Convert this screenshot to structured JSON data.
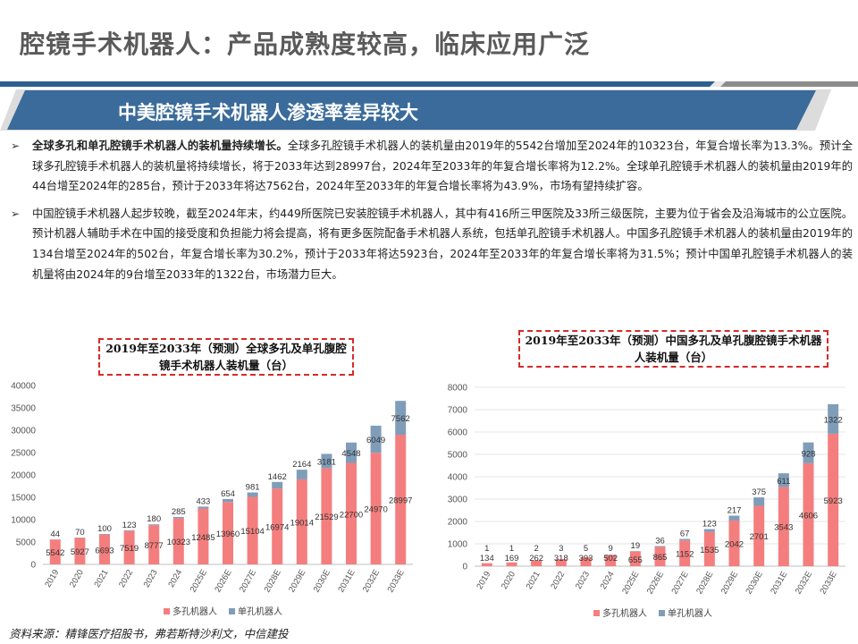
{
  "page": {
    "title": "腔镜手术机器人：产品成熟度较高，临床应用广泛",
    "section_banner": "中美腔镜手术机器人渗透率差异较大",
    "bullet1_bold": "全球多孔和单孔腔镜手术机器人的装机量持续增长。",
    "bullet1_text": "全球多孔腔镜手术机器人的装机量由2019年的5542台增加至2024年的10323台，年复合增长率为13.3%。预计全球多孔腔镜手术机器人的装机量将持续增长，将于2033年达到28997台，2024年至2033年的年复合增长率将为12.2%。全球单孔腔镜手术机器人的装机量由2019年的44台增至2024年的285台，预计于2033年将达7562台，2024年至2033年的年复合增长率将为43.9%，市场有望持续扩容。",
    "bullet2_text": "中国腔镜手术机器人起步较晚，截至2024年末，约449所医院已安装腔镜手术机器人，其中有416所三甲医院及33所三级医院，主要为位于省会及沿海城市的公立医院。预计机器人辅助手术在中国的接受度和负担能力将会提高，将有更多医院配备手术机器人系统，包括单孔腔镜手术机器人。中国多孔腔镜手术机器人的装机量由2019年的134台增至2024年的502台，年复合增长率为30.2%，预计于2033年将达5923台，2024年至2033年的年复合增长率将为31.5%；预计中国单孔腔镜手术机器人的装机量将由2024年的9台增至2033年的1322台，市场潜力巨大。",
    "source": "资料来源：精锋医疗招股书，弗若斯特沙利文，中信建投"
  },
  "colors": {
    "multi_port": "#f47e7e",
    "single_port": "#7f9db9",
    "banner": "#3a6b9a",
    "accent_rule": "#2e5f8f"
  },
  "icons": {
    "bullet": "arrow-bullet-icon"
  },
  "chart_data": [
    {
      "type": "bar",
      "stacked": true,
      "title": "2019年至2033年（预测）全球多孔及单孔腹腔镜手术机器人装机量（台）",
      "categories": [
        "2019",
        "2020",
        "2021",
        "2022",
        "2023",
        "2024",
        "2025E",
        "2026E",
        "2027E",
        "2028E",
        "2029E",
        "2030E",
        "2031E",
        "2032E",
        "2033E"
      ],
      "series": [
        {
          "name": "多孔机器人",
          "values": [
            5542,
            5927,
            6693,
            7519,
            8777,
            10323,
            12485,
            13960,
            15104,
            16974,
            19014,
            21529,
            22700,
            24970,
            28997
          ]
        },
        {
          "name": "单孔机器人",
          "values": [
            44,
            70,
            100,
            123,
            180,
            285,
            433,
            654,
            981,
            1462,
            2164,
            3181,
            4548,
            6049,
            7562
          ]
        }
      ],
      "ylim": [
        0,
        40000
      ],
      "yticks": [
        "0",
        "5000",
        "10000",
        "15000",
        "20000",
        "25000",
        "30000",
        "35000",
        "40000"
      ],
      "legend": "bottom",
      "grid": false
    },
    {
      "type": "bar",
      "stacked": true,
      "title": "2019年至2033年（预测）中国多孔及单孔腹腔镜手术机器人装机量（台）",
      "categories": [
        "2019",
        "2020",
        "2021",
        "2022",
        "2023",
        "2024",
        "2025E",
        "2026E",
        "2027E",
        "2028E",
        "2029E",
        "2030E",
        "2031E",
        "2032E",
        "2033E"
      ],
      "series": [
        {
          "name": "多孔机器人",
          "values": [
            134,
            169,
            262,
            318,
            393,
            502,
            655,
            865,
            1152,
            1535,
            2042,
            2701,
            3543,
            4606,
            5923
          ]
        },
        {
          "name": "单孔机器人",
          "values": [
            1,
            1,
            2,
            3,
            5,
            9,
            19,
            36,
            67,
            123,
            217,
            375,
            611,
            928,
            1322
          ]
        }
      ],
      "ylim": [
        0,
        8000
      ],
      "yticks": [
        "0",
        "1000",
        "2000",
        "3000",
        "4000",
        "5000",
        "6000",
        "7000",
        "8000"
      ],
      "legend": "bottom",
      "grid": true
    }
  ]
}
